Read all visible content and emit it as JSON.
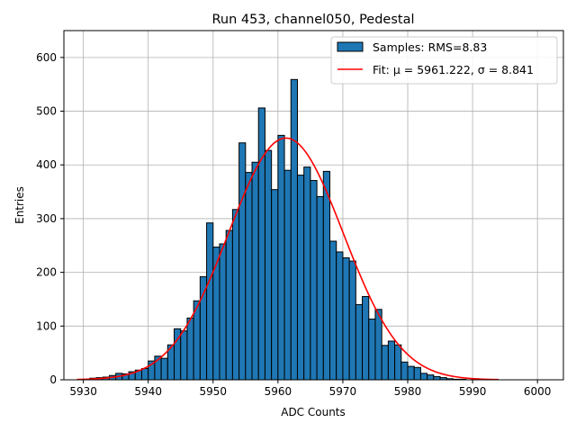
{
  "chart_data": {
    "type": "bar",
    "title": "Run 453, channel050, Pedestal",
    "xlabel": "ADC Counts",
    "ylabel": "Entries",
    "xlim": [
      5927,
      6004
    ],
    "ylim": [
      0,
      650
    ],
    "xticks": [
      5930,
      5940,
      5950,
      5960,
      5970,
      5980,
      5990,
      6000
    ],
    "yticks": [
      0,
      100,
      200,
      300,
      400,
      500,
      600
    ],
    "grid": true,
    "legend_position": "top-right",
    "colors": {
      "bars": "#1f77b4",
      "bar_edge": "#000000",
      "fit": "#ff0000",
      "grid": "#b0b0b0"
    },
    "series": [
      {
        "name": "Samples: RMS=8.83",
        "kind": "histogram",
        "bin_width": 1,
        "bin_start": 5930,
        "values": [
          0,
          3,
          4,
          5,
          8,
          12,
          11,
          15,
          18,
          21,
          35,
          44,
          40,
          65,
          95,
          91,
          115,
          147,
          192,
          292,
          247,
          253,
          278,
          317,
          441,
          386,
          405,
          506,
          427,
          354,
          455,
          390,
          559,
          381,
          396,
          371,
          341,
          388,
          258,
          238,
          227,
          221,
          140,
          155,
          113,
          131,
          64,
          72,
          65,
          33,
          25,
          23,
          12,
          9,
          6,
          4,
          2,
          1,
          1,
          0
        ]
      },
      {
        "name": "Fit: μ = 5961.222, σ = 8.841",
        "kind": "gaussian",
        "mu": 5961.222,
        "sigma": 8.841,
        "amplitude": 450,
        "x_range": [
          5929,
          5994
        ]
      }
    ]
  }
}
